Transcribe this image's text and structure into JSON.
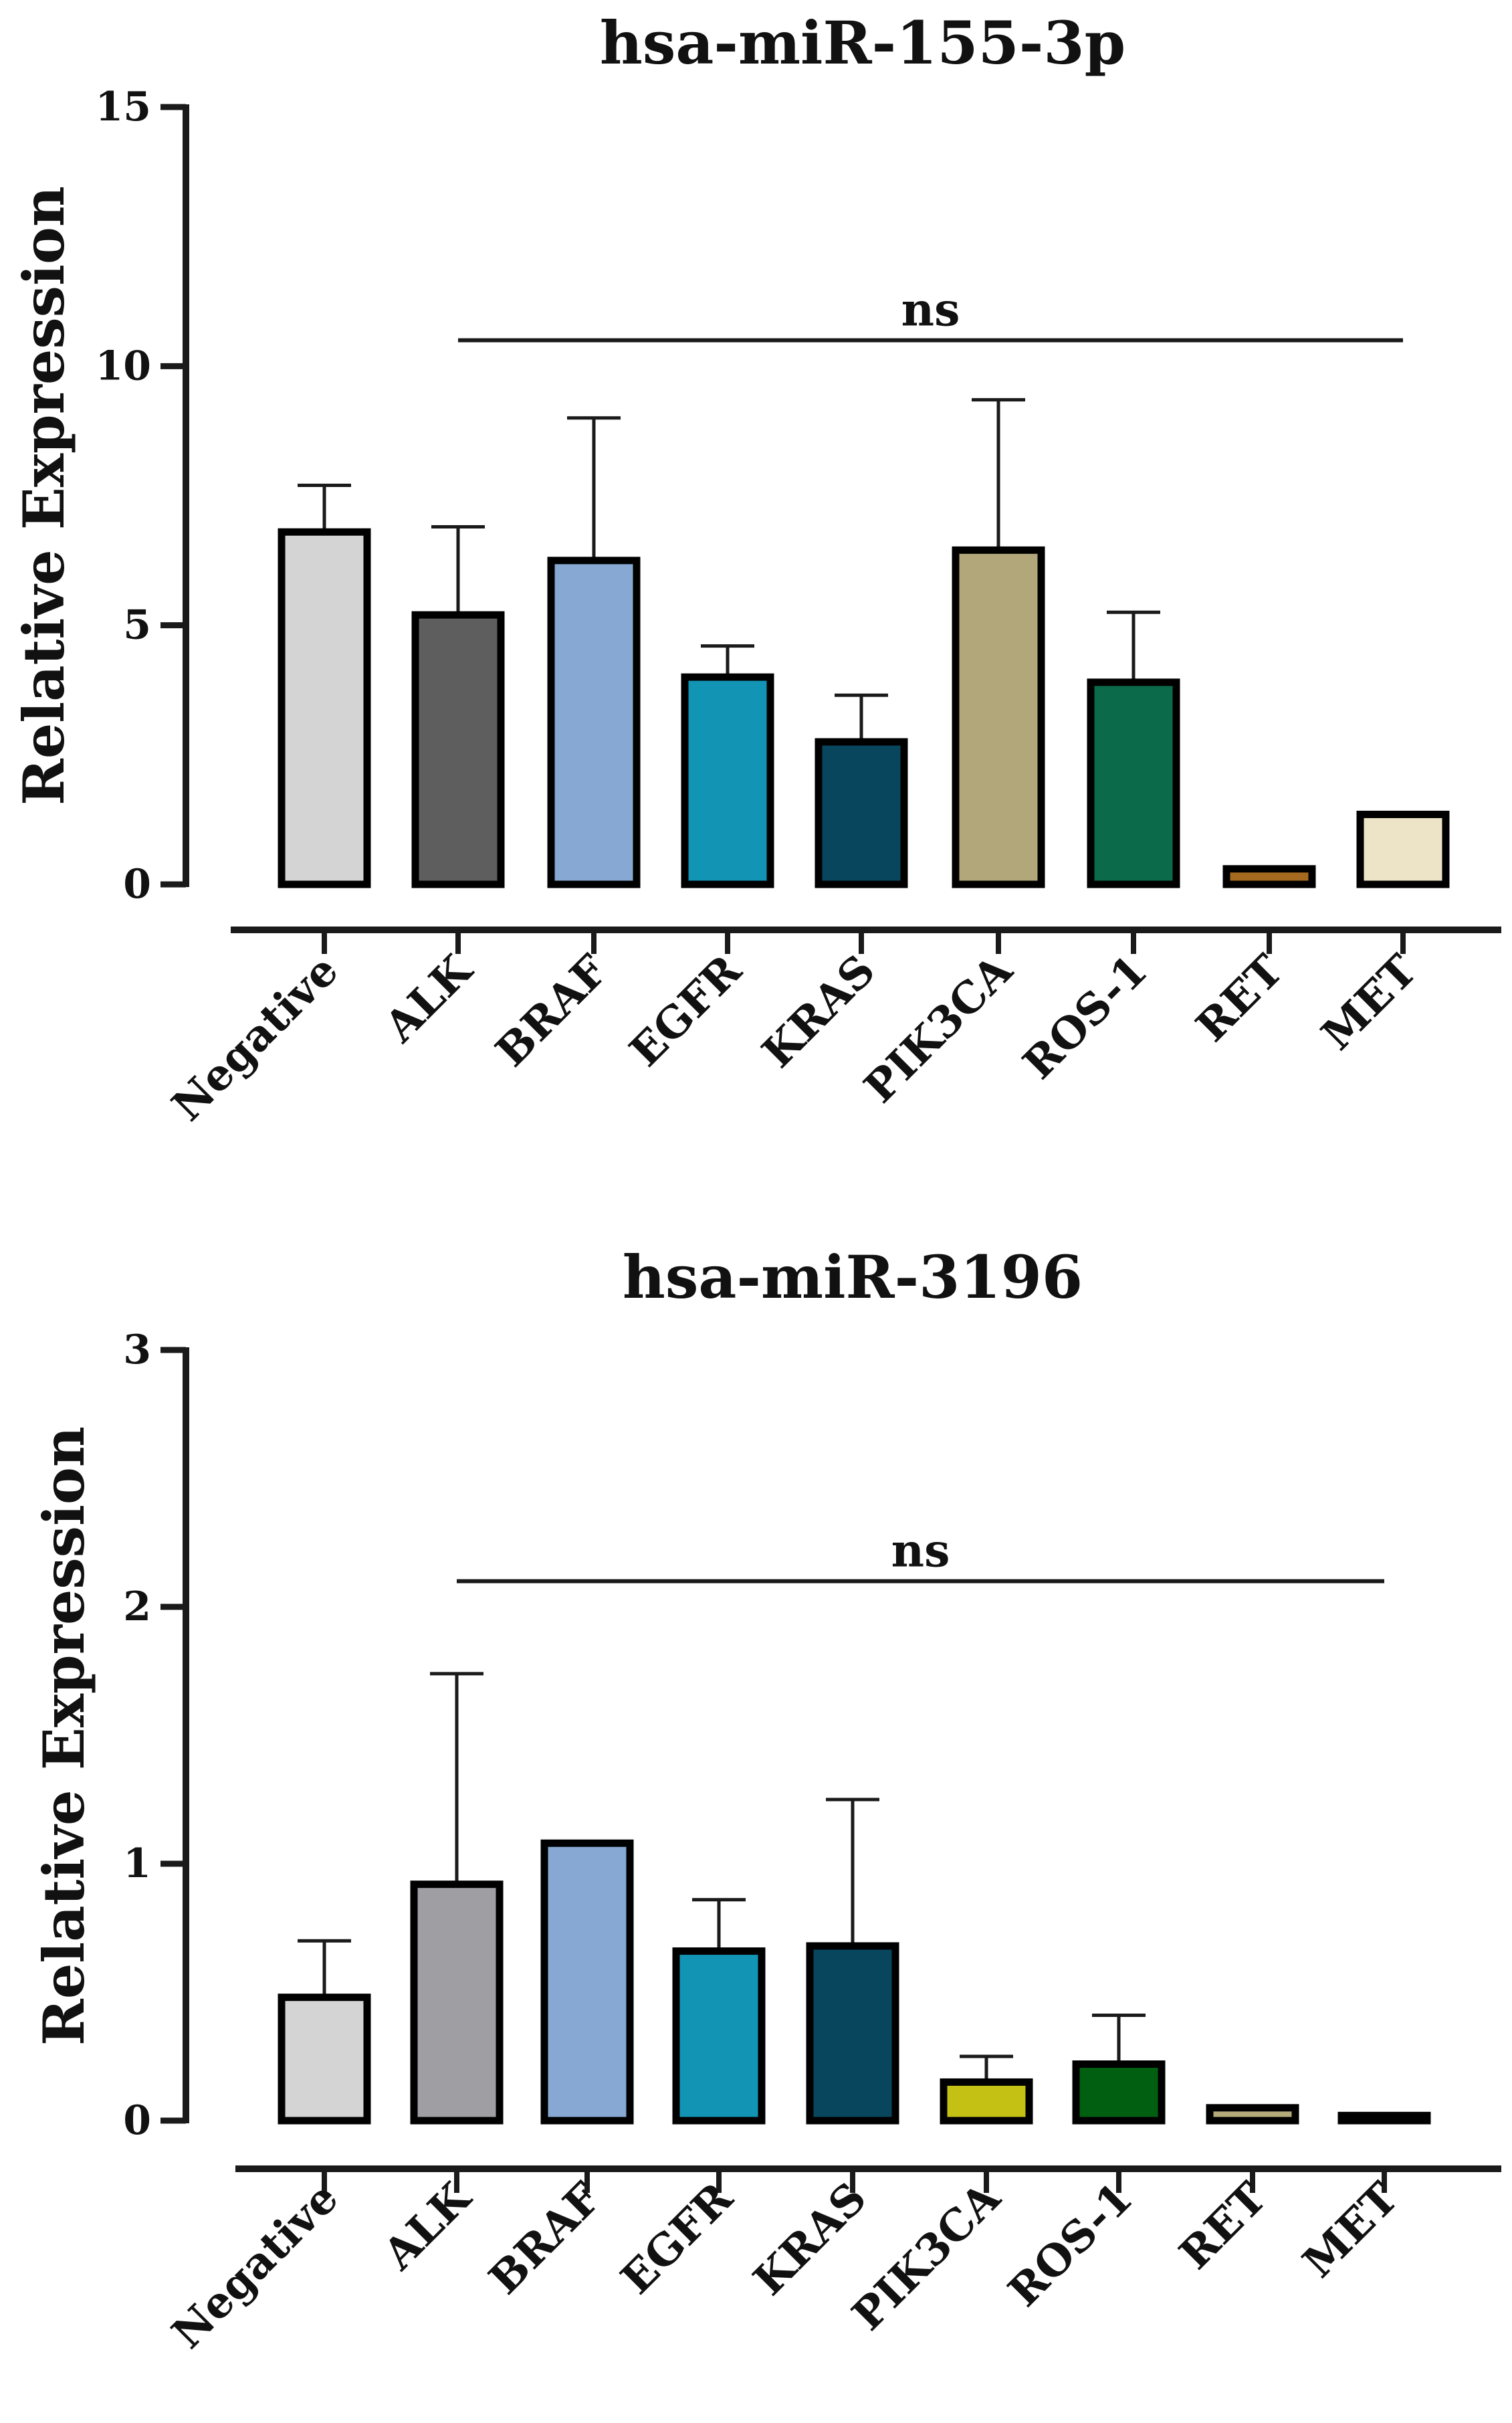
{
  "chart_data": [
    {
      "type": "bar",
      "title": "hsa-miR-155-3p",
      "xlabel": "",
      "ylabel": "Relative Expression",
      "ylim": [
        0,
        15
      ],
      "yticks": [
        0,
        5,
        10,
        15
      ],
      "categories": [
        "Negative",
        "ALK",
        "BRAF",
        "EGFR",
        "KRAS",
        "PIK3CA",
        "ROS-1",
        "RET",
        "MET"
      ],
      "values": [
        6.8,
        5.2,
        6.25,
        4.0,
        2.75,
        6.45,
        3.9,
        0.3,
        1.35
      ],
      "error": [
        0.9,
        1.7,
        2.75,
        0.6,
        0.9,
        2.9,
        1.35,
        0,
        0
      ],
      "colors": [
        "#d4d4d4",
        "#5e5e5e",
        "#86a8d2",
        "#1295b5",
        "#08465e",
        "#b2a77a",
        "#0a6a4a",
        "#a56a1f",
        "#ede3c6"
      ],
      "annotation": {
        "text": "ns",
        "from": "ALK",
        "to": "MET",
        "level": 10.5
      }
    },
    {
      "type": "bar",
      "title": "hsa-miR-3196",
      "xlabel": "",
      "ylabel": "Relative Expression",
      "ylim": [
        0,
        3
      ],
      "yticks": [
        0,
        1,
        2,
        3
      ],
      "categories": [
        "Negative",
        "ALK",
        "BRAF",
        "EGFR",
        "KRAS",
        "PIK3CA",
        "ROS-1",
        "RET",
        "MET"
      ],
      "values": [
        0.48,
        0.92,
        1.08,
        0.66,
        0.68,
        0.15,
        0.22,
        0.05,
        0.02
      ],
      "error": [
        0.22,
        0.82,
        0,
        0.2,
        0.57,
        0.1,
        0.19,
        0,
        0
      ],
      "colors": [
        "#d4d4d4",
        "#9e9ea3",
        "#86a8d2",
        "#1295b5",
        "#08465e",
        "#c5c014",
        "#005f10",
        "#b5ab7a",
        "#777777"
      ],
      "annotation": {
        "text": "ns",
        "from": "ALK",
        "to": "MET",
        "level": 2.1
      }
    }
  ]
}
